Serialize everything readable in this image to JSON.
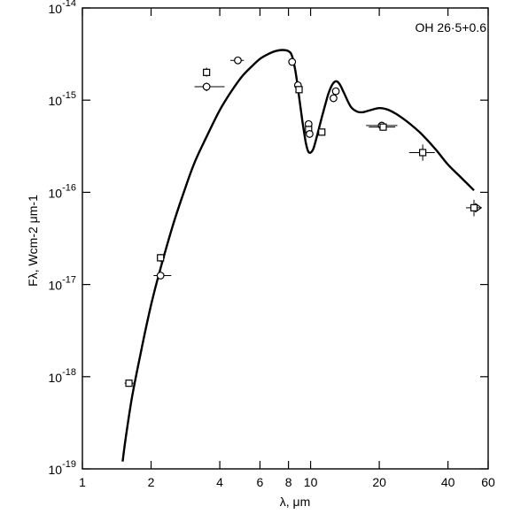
{
  "chart_data": {
    "type": "scatter",
    "title": "",
    "annotation": "OH 26·5+0.6",
    "xlabel": "λ, μm",
    "ylabel": "Fλ, Wcm-2 μm-1",
    "x_scale": "log",
    "y_scale": "log",
    "xlim": [
      1,
      60
    ],
    "ylim": [
      1e-19,
      1e-14
    ],
    "x_ticks": [
      1,
      2,
      4,
      6,
      8,
      10,
      20,
      40,
      60
    ],
    "x_tick_labels": [
      "1",
      "2",
      "4",
      "6",
      "8",
      "10",
      "20",
      "40",
      "60"
    ],
    "y_ticks": [
      1e-19,
      1e-18,
      1e-17,
      1e-16,
      1e-15,
      1e-14
    ],
    "y_tick_labels": [
      {
        "base": "10",
        "exp": "-19"
      },
      {
        "base": "10",
        "exp": "-18"
      },
      {
        "base": "10",
        "exp": "-17"
      },
      {
        "base": "10",
        "exp": "-16"
      },
      {
        "base": "10",
        "exp": "-15"
      },
      {
        "base": "10",
        "exp": "-14"
      }
    ],
    "grid": false,
    "legend": "none",
    "series": [
      {
        "kind": "model-curve",
        "x": [
          1.5,
          1.55,
          1.65,
          1.8,
          2.0,
          2.2,
          2.5,
          2.8,
          3.1,
          3.5,
          4.0,
          4.5,
          5.0,
          5.5,
          6.0,
          6.5,
          7.0,
          7.5,
          8.0,
          8.3,
          8.6,
          8.9,
          9.2,
          9.5,
          9.75,
          10.0,
          10.3,
          10.7,
          11.2,
          11.6,
          12.0,
          12.5,
          13.0,
          13.5,
          14.0,
          15.0,
          16.0,
          17.0,
          18.0,
          20.0,
          22.0,
          25.0,
          30.0,
          35.0,
          40.0,
          45.0,
          52.0
        ],
        "y": [
          1.2e-19,
          2.2e-19,
          6e-19,
          1.8e-18,
          6e-18,
          1.5e-17,
          4.5e-17,
          1.05e-16,
          2.1e-16,
          4e-16,
          7.8e-16,
          1.25e-15,
          1.8e-15,
          2.3e-15,
          2.8e-15,
          3.15e-15,
          3.4e-15,
          3.5e-15,
          3.4e-15,
          3e-15,
          2e-15,
          1.1e-15,
          6e-16,
          3.6e-16,
          2.8e-16,
          2.7e-16,
          3e-16,
          4.2e-16,
          6.5e-16,
          9e-16,
          1.2e-15,
          1.5e-15,
          1.6e-15,
          1.45e-15,
          1.2e-15,
          8.5e-16,
          7.5e-16,
          7.4e-16,
          7.7e-16,
          8.2e-16,
          7.8e-16,
          6.5e-16,
          4.5e-16,
          3e-16,
          2e-16,
          1.5e-16,
          1.05e-16
        ]
      },
      {
        "kind": "observations",
        "points": [
          {
            "x": 1.6,
            "y": 8.5e-19,
            "xerr": [
              1.53,
              1.68
            ],
            "yerr": [
              7.8e-19,
              9.3e-19
            ],
            "marker": "square"
          },
          {
            "x": 2.2,
            "y": 1.95e-17,
            "xerr": [
              2.12,
              2.3
            ],
            "yerr": [
              1.75e-17,
              2.15e-17
            ],
            "marker": "square"
          },
          {
            "x": 2.2,
            "y": 1.25e-17,
            "xerr": [
              2.05,
              2.45
            ],
            "yerr": [
              1.15e-17,
              1.35e-17
            ],
            "marker": "circle"
          },
          {
            "x": 3.5,
            "y": 2e-15,
            "xerr": [
              3.38,
              3.62
            ],
            "yerr": [
              1.8e-15,
              2.25e-15
            ],
            "marker": "square"
          },
          {
            "x": 3.5,
            "y": 1.4e-15,
            "xerr": [
              3.1,
              4.2
            ],
            "yerr": [
              1.25e-15,
              1.55e-15
            ],
            "marker": "circle"
          },
          {
            "x": 4.8,
            "y": 2.7e-15,
            "xerr": [
              4.45,
              5.1
            ],
            "yerr": [
              2.45e-15,
              2.95e-15
            ],
            "marker": "circle"
          },
          {
            "x": 8.3,
            "y": 2.6e-15,
            "xerr": [
              8.05,
              8.55
            ],
            "yerr": [
              2.4e-15,
              2.8e-15
            ],
            "marker": "circle"
          },
          {
            "x": 8.8,
            "y": 1.45e-15,
            "xerr": [
              8.6,
              9.05
            ],
            "yerr": [
              1.3e-15,
              1.6e-15
            ],
            "marker": "circle"
          },
          {
            "x": 8.9,
            "y": 1.3e-15,
            "xerr": [
              8.7,
              9.1
            ],
            "yerr": [
              1.18e-15,
              1.42e-15
            ],
            "marker": "square"
          },
          {
            "x": 9.8,
            "y": 5.5e-16,
            "xerr": [
              9.55,
              10.05
            ],
            "yerr": [
              5e-16,
              6e-16
            ],
            "marker": "circle"
          },
          {
            "x": 9.8,
            "y": 4.8e-16,
            "xerr": [
              9.55,
              10.05
            ],
            "yerr": [
              4.35e-16,
              5.25e-16
            ],
            "marker": "square"
          },
          {
            "x": 9.9,
            "y": 4.3e-16,
            "xerr": [
              9.65,
              10.15
            ],
            "yerr": [
              3.9e-16,
              4.7e-16
            ],
            "marker": "circle"
          },
          {
            "x": 11.2,
            "y": 4.5e-16,
            "xerr": [
              10.8,
              11.6
            ],
            "yerr": [
              4.1e-16,
              4.9e-16
            ],
            "marker": "square"
          },
          {
            "x": 12.6,
            "y": 1.05e-15,
            "xerr": [
              12.3,
              12.9
            ],
            "yerr": [
              9.5e-16,
              1.15e-15
            ],
            "marker": "circle"
          },
          {
            "x": 12.9,
            "y": 1.25e-15,
            "xerr": [
              12.6,
              13.2
            ],
            "yerr": [
              1.13e-15,
              1.37e-15
            ],
            "marker": "circle"
          },
          {
            "x": 20.5,
            "y": 5.3e-16,
            "xerr": [
              17.5,
              24.0
            ],
            "yerr": [
              4.9e-16,
              5.7e-16
            ],
            "marker": "circle"
          },
          {
            "x": 20.8,
            "y": 5.1e-16,
            "xerr": [
              18.0,
              23.5
            ],
            "yerr": [
              4.7e-16,
              5.5e-16
            ],
            "marker": "square"
          },
          {
            "x": 31.0,
            "y": 2.7e-16,
            "xerr": [
              27.0,
              35.0
            ],
            "yerr": [
              2.2e-16,
              3.3e-16
            ],
            "marker": "square"
          },
          {
            "x": 52.0,
            "y": 6.8e-17,
            "xerr": [
              48.0,
              56.0
            ],
            "yerr": [
              5.5e-17,
              8.3e-17
            ],
            "marker": "square",
            "arrow": "right"
          }
        ]
      }
    ]
  }
}
